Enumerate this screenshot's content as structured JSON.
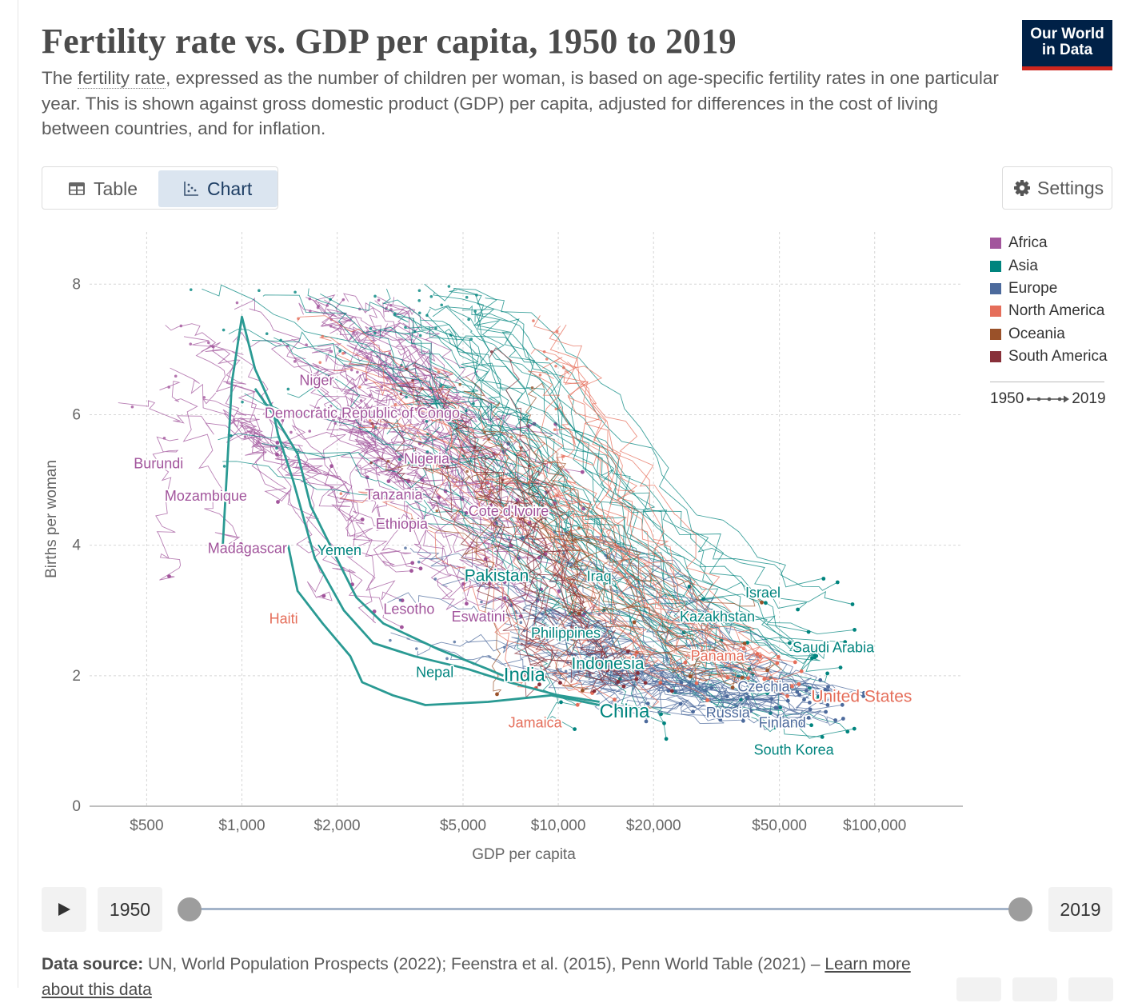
{
  "header": {
    "title": "Fertility rate vs. GDP per capita, 1950 to 2019",
    "subtitle_pre": "The ",
    "subtitle_link": "fertility rate",
    "subtitle_post": ", expressed as the number of children per woman, is based on age-specific fertility rates in one particular year. This is shown against gross domestic product (GDP) per capita, adjusted for differences in the cost of living between countries, and for inflation."
  },
  "logo": {
    "line1": "Our World",
    "line2": "in Data"
  },
  "tabs": {
    "table": "Table",
    "chart": "Chart"
  },
  "settings_label": "Settings",
  "legend": {
    "items": [
      {
        "label": "Africa",
        "color": "#a2559c"
      },
      {
        "label": "Asia",
        "color": "#00847e"
      },
      {
        "label": "Europe",
        "color": "#4c6a9c"
      },
      {
        "label": "North America",
        "color": "#e56e5a"
      },
      {
        "label": "Oceania",
        "color": "#9a5129"
      },
      {
        "label": "South America",
        "color": "#883039"
      }
    ],
    "time_start": "1950",
    "time_end": "2019"
  },
  "timeline": {
    "start_year": "1950",
    "end_year": "2019"
  },
  "footer": {
    "source_label": "Data source:",
    "source_text": " UN, World Population Prospects (2022); Feenstra et al. (2015), Penn World Table (2021) – ",
    "source_link": "Learn more about this data"
  },
  "chart_data": {
    "type": "scatter",
    "title": "Fertility rate vs. GDP per capita, 1950 to 2019",
    "xlabel": "GDP per capita",
    "ylabel": "Births per woman",
    "xscale": "log",
    "xlim": [
      330,
      190000
    ],
    "ylim": [
      0,
      8.8
    ],
    "xticks": [
      500,
      1000,
      2000,
      5000,
      10000,
      20000,
      50000,
      100000
    ],
    "xtick_labels": [
      "$500",
      "$1,000",
      "$2,000",
      "$5,000",
      "$10,000",
      "$20,000",
      "$50,000",
      "$100,000"
    ],
    "yticks": [
      0,
      2,
      4,
      6,
      8
    ],
    "ytick_labels": [
      "0",
      "2",
      "4",
      "6",
      "8"
    ],
    "grid": true,
    "legend_position": "right",
    "series": [
      {
        "name": "Niger",
        "region": "Africa",
        "gdp": 1600,
        "fertility": 6.5
      },
      {
        "name": "Democratic Republic of Congo",
        "region": "Africa",
        "gdp": 1150,
        "fertility": 6.0
      },
      {
        "name": "Nigeria",
        "region": "Africa",
        "gdp": 4100,
        "fertility": 5.3
      },
      {
        "name": "Burundi",
        "region": "Africa",
        "gdp": 700,
        "fertility": 5.3
      },
      {
        "name": "Tanzania",
        "region": "Africa",
        "gdp": 2750,
        "fertility": 4.8
      },
      {
        "name": "Mozambique",
        "region": "Africa",
        "gdp": 1150,
        "fertility": 4.8
      },
      {
        "name": "Cote d'Ivoire",
        "region": "Africa",
        "gdp": 5100,
        "fertility": 4.5
      },
      {
        "name": "Ethiopia",
        "region": "Africa",
        "gdp": 2250,
        "fertility": 4.3
      },
      {
        "name": "Madagascar",
        "region": "Africa",
        "gdp": 1400,
        "fertility": 4.0
      },
      {
        "name": "Yemen",
        "region": "Asia",
        "gdp": 2000,
        "fertility": 3.9
      },
      {
        "name": "Pakistan",
        "region": "Asia",
        "gdp": 5000,
        "fertility": 3.5
      },
      {
        "name": "Iraq",
        "region": "Asia",
        "gdp": 10500,
        "fertility": 3.5
      },
      {
        "name": "Israel",
        "region": "Asia",
        "gdp": 38000,
        "fertility": 3.1
      },
      {
        "name": "Kazakhstan",
        "region": "Asia",
        "gdp": 26000,
        "fertility": 2.8
      },
      {
        "name": "Lesotho",
        "region": "Africa",
        "gdp": 2800,
        "fertility": 3.1
      },
      {
        "name": "Haiti",
        "region": "North America",
        "gdp": 1700,
        "fertility": 2.9
      },
      {
        "name": "Eswatini",
        "region": "Africa",
        "gdp": 8000,
        "fertility": 2.9
      },
      {
        "name": "Philippines",
        "region": "Asia",
        "gdp": 8300,
        "fertility": 2.6
      },
      {
        "name": "Saudi Arabia",
        "region": "Asia",
        "gdp": 50000,
        "fertility": 2.3
      },
      {
        "name": "Panama",
        "region": "North America",
        "gdp": 31000,
        "fertility": 2.4
      },
      {
        "name": "Indonesia",
        "region": "Asia",
        "gdp": 11500,
        "fertility": 2.3
      },
      {
        "name": "Nepal",
        "region": "Asia",
        "gdp": 3500,
        "fertility": 2.0
      },
      {
        "name": "India",
        "region": "Asia",
        "gdp": 6500,
        "fertility": 2.1
      },
      {
        "name": "Czechia",
        "region": "Europe",
        "gdp": 41000,
        "fertility": 1.7
      },
      {
        "name": "United States",
        "region": "North America",
        "gdp": 62000,
        "fertility": 1.7
      },
      {
        "name": "China",
        "region": "Asia",
        "gdp": 14000,
        "fertility": 1.5
      },
      {
        "name": "Russia",
        "region": "Europe",
        "gdp": 27000,
        "fertility": 1.5
      },
      {
        "name": "Jamaica",
        "region": "North America",
        "gdp": 9000,
        "fertility": 1.4
      },
      {
        "name": "Finland",
        "region": "Europe",
        "gdp": 46000,
        "fertility": 1.35
      },
      {
        "name": "South Korea",
        "region": "Asia",
        "gdp": 42000,
        "fertility": 0.9
      }
    ],
    "labels": [
      {
        "text": "Niger",
        "color": "#a2559c",
        "gdp": 1520,
        "fertility": 6.45,
        "size": "s"
      },
      {
        "text": "Democratic Republic of Congo",
        "color": "#a2559c",
        "gdp": 1180,
        "fertility": 5.95,
        "size": "s"
      },
      {
        "text": "Burundi",
        "color": "#a2559c",
        "gdp": 455,
        "fertility": 5.18,
        "size": "s"
      },
      {
        "text": "Mozambique",
        "color": "#a2559c",
        "gdp": 570,
        "fertility": 4.68,
        "size": "s"
      },
      {
        "text": "Nigeria",
        "color": "#a2559c",
        "gdp": 3250,
        "fertility": 5.25,
        "size": "s"
      },
      {
        "text": "Tanzania",
        "color": "#a2559c",
        "gdp": 2450,
        "fertility": 4.7,
        "size": "s"
      },
      {
        "text": "Ethiopia",
        "color": "#a2559c",
        "gdp": 2650,
        "fertility": 4.25,
        "size": "s"
      },
      {
        "text": "Cote d'Ivoire",
        "color": "#a2559c",
        "gdp": 5200,
        "fertility": 4.45,
        "size": "s"
      },
      {
        "text": "Madagascar",
        "color": "#a2559c",
        "gdp": 780,
        "fertility": 3.88,
        "size": "s"
      },
      {
        "text": "Yemen",
        "color": "#00847e",
        "gdp": 1730,
        "fertility": 3.85,
        "size": "s"
      },
      {
        "text": "Pakistan",
        "color": "#00847e",
        "gdp": 5050,
        "fertility": 3.45,
        "size": "m"
      },
      {
        "text": "Iraq",
        "color": "#00847e",
        "gdp": 12300,
        "fertility": 3.45,
        "size": "s"
      },
      {
        "text": "Israel",
        "color": "#00847e",
        "gdp": 39000,
        "fertility": 3.2,
        "size": "s"
      },
      {
        "text": "Kazakhstan",
        "color": "#00847e",
        "gdp": 24200,
        "fertility": 2.83,
        "size": "s"
      },
      {
        "text": "Lesotho",
        "color": "#a2559c",
        "gdp": 2800,
        "fertility": 2.95,
        "size": "s"
      },
      {
        "text": "Haiti",
        "color": "#e56e5a",
        "gdp": 1220,
        "fertility": 2.8,
        "size": "s"
      },
      {
        "text": "Eswatini",
        "color": "#a2559c",
        "gdp": 4600,
        "fertility": 2.83,
        "size": "s"
      },
      {
        "text": "Philippines",
        "color": "#00847e",
        "gdp": 8200,
        "fertility": 2.58,
        "size": "s"
      },
      {
        "text": "Saudi Arabia",
        "color": "#00847e",
        "gdp": 55000,
        "fertility": 2.36,
        "size": "s"
      },
      {
        "text": "Panama",
        "color": "#e56e5a",
        "gdp": 26200,
        "fertility": 2.23,
        "size": "s"
      },
      {
        "text": "Indonesia",
        "color": "#00847e",
        "gdp": 11000,
        "fertility": 2.1,
        "size": "m"
      },
      {
        "text": "Nepal",
        "color": "#00847e",
        "gdp": 3550,
        "fertility": 1.98,
        "size": "s"
      },
      {
        "text": "India",
        "color": "#00847e",
        "gdp": 6720,
        "fertility": 1.92,
        "size": "l"
      },
      {
        "text": "Czechia",
        "color": "#4c6a9c",
        "gdp": 36900,
        "fertility": 1.76,
        "size": "s"
      },
      {
        "text": "United States",
        "color": "#e56e5a",
        "gdp": 63000,
        "fertility": 1.6,
        "size": "m"
      },
      {
        "text": "China",
        "color": "#00847e",
        "gdp": 13500,
        "fertility": 1.36,
        "size": "l"
      },
      {
        "text": "Russia",
        "color": "#4c6a9c",
        "gdp": 29300,
        "fertility": 1.36,
        "size": "s"
      },
      {
        "text": "Jamaica",
        "color": "#e56e5a",
        "gdp": 6950,
        "fertility": 1.21,
        "size": "s"
      },
      {
        "text": "Finland",
        "color": "#4c6a9c",
        "gdp": 43000,
        "fertility": 1.21,
        "size": "s"
      },
      {
        "text": "South Korea",
        "color": "#00847e",
        "gdp": 41500,
        "fertility": 0.79,
        "size": "s"
      }
    ]
  }
}
